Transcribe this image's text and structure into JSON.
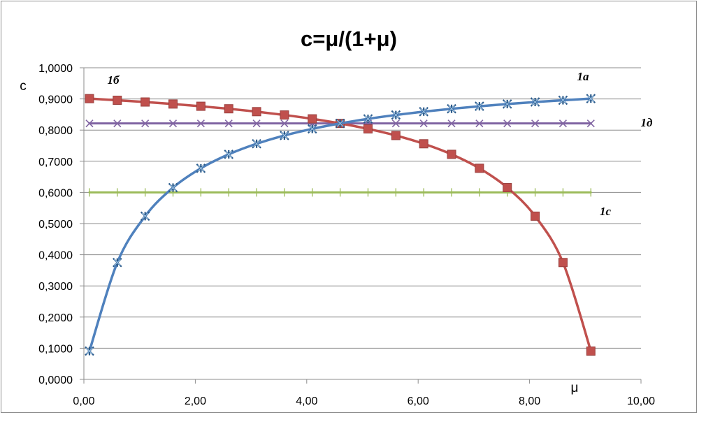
{
  "chart_data": {
    "type": "line",
    "title": "c=μ/(1+μ)",
    "xlabel": "μ",
    "ylabel": "c",
    "xlim": [
      0,
      10
    ],
    "ylim": [
      0,
      1
    ],
    "x_ticks": [
      "0,00",
      "2,00",
      "4,00",
      "6,00",
      "8,00",
      "10,00"
    ],
    "y_ticks": [
      "0,0000",
      "0,1000",
      "0,2000",
      "0,3000",
      "0,4000",
      "0,5000",
      "0,6000",
      "0,7000",
      "0,8000",
      "0,9000",
      "1,0000"
    ],
    "grid": "horizontal",
    "legend": "none",
    "series": [
      {
        "name": "1а",
        "color": "#4f81bd",
        "marker": "star",
        "x": [
          0.1,
          0.6,
          1.1,
          1.6,
          2.1,
          2.6,
          3.1,
          3.6,
          4.1,
          4.6,
          5.1,
          5.6,
          6.1,
          6.6,
          7.1,
          7.6,
          8.1,
          8.6,
          9.1
        ],
        "y": [
          0.0909,
          0.375,
          0.5238,
          0.6154,
          0.6774,
          0.7222,
          0.7561,
          0.7826,
          0.8039,
          0.8214,
          0.8361,
          0.8485,
          0.8592,
          0.8684,
          0.8765,
          0.8837,
          0.8901,
          0.8958,
          0.901
        ]
      },
      {
        "name": "1б",
        "color": "#c0504d",
        "marker": "square",
        "x": [
          0.1,
          0.6,
          1.1,
          1.6,
          2.1,
          2.6,
          3.1,
          3.6,
          4.1,
          4.6,
          5.1,
          5.6,
          6.1,
          6.6,
          7.1,
          7.6,
          8.1,
          8.6,
          9.1
        ],
        "y": [
          0.901,
          0.8958,
          0.8901,
          0.8837,
          0.8765,
          0.8684,
          0.8592,
          0.8485,
          0.8361,
          0.8214,
          0.8039,
          0.7826,
          0.7561,
          0.7222,
          0.6774,
          0.6154,
          0.5238,
          0.375,
          0.0909
        ]
      },
      {
        "name": "1с",
        "color": "#9bbb59",
        "marker": "plus",
        "x": [
          0.1,
          0.6,
          1.1,
          1.6,
          2.1,
          2.6,
          3.1,
          3.6,
          4.1,
          4.6,
          5.1,
          5.6,
          6.1,
          6.6,
          7.1,
          7.6,
          8.1,
          8.6,
          9.1
        ],
        "y": [
          0.6,
          0.6,
          0.6,
          0.6,
          0.6,
          0.6,
          0.6,
          0.6,
          0.6,
          0.6,
          0.6,
          0.6,
          0.6,
          0.6,
          0.6,
          0.6,
          0.6,
          0.6,
          0.6
        ]
      },
      {
        "name": "1д",
        "color": "#8064a2",
        "marker": "x",
        "x": [
          0.1,
          0.6,
          1.1,
          1.6,
          2.1,
          2.6,
          3.1,
          3.6,
          4.1,
          4.6,
          5.1,
          5.6,
          6.1,
          6.6,
          7.1,
          7.6,
          8.1,
          8.6,
          9.1
        ],
        "y": [
          0.8214,
          0.8214,
          0.8214,
          0.8214,
          0.8214,
          0.8214,
          0.8214,
          0.8214,
          0.8214,
          0.8214,
          0.8214,
          0.8214,
          0.8214,
          0.8214,
          0.8214,
          0.8214,
          0.8214,
          0.8214,
          0.8214
        ]
      }
    ]
  }
}
